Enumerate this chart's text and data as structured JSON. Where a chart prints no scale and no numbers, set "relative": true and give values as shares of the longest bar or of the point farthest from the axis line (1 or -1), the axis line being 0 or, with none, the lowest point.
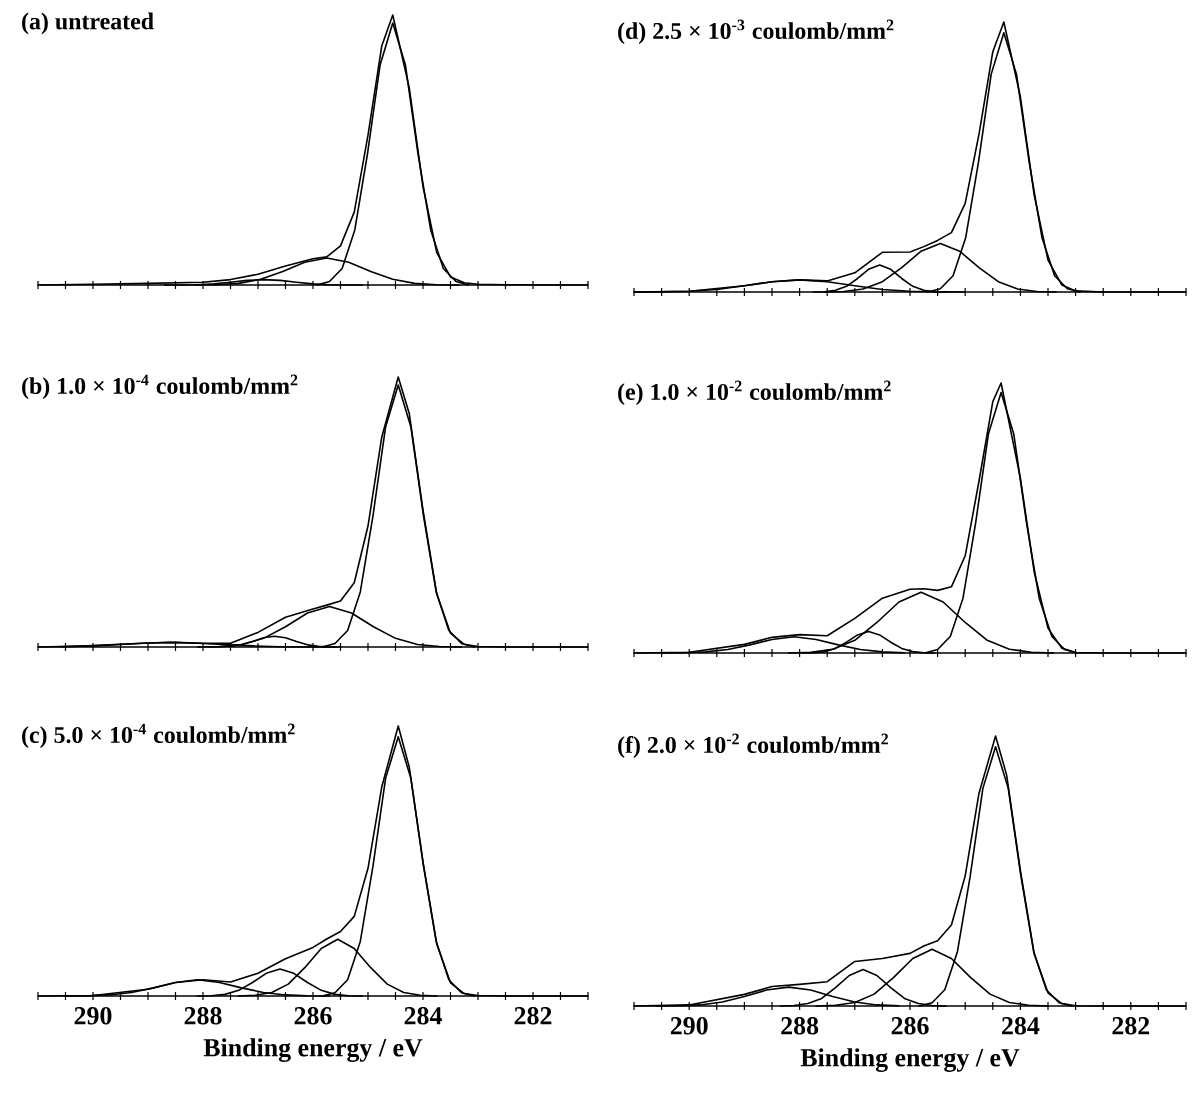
{
  "chart_data": [
    {
      "type": "line",
      "title": "(a) untreated",
      "relative": true,
      "tick_labels": false,
      "xlim": [
        291,
        281
      ],
      "xticks": [
        {
          "value": 291,
          "label": null
        },
        {
          "value": 290.5,
          "label": null
        },
        {
          "value": 290,
          "label": null
        },
        {
          "value": 289.5,
          "label": null
        },
        {
          "value": 289,
          "label": null
        },
        {
          "value": 288.5,
          "label": null
        },
        {
          "value": 288,
          "label": null
        },
        {
          "value": 287.5,
          "label": null
        },
        {
          "value": 287,
          "label": null
        },
        {
          "value": 286.5,
          "label": null
        },
        {
          "value": 286,
          "label": null
        },
        {
          "value": 285.5,
          "label": null
        },
        {
          "value": 285,
          "label": null
        },
        {
          "value": 284.5,
          "label": null
        },
        {
          "value": 284,
          "label": null
        },
        {
          "value": 283.5,
          "label": null
        },
        {
          "value": 283,
          "label": null
        },
        {
          "value": 282.5,
          "label": null
        },
        {
          "value": 282,
          "label": null
        },
        {
          "value": 281.5,
          "label": null
        },
        {
          "value": 281,
          "label": null
        }
      ],
      "series": [
        {
          "color": "#000000",
          "x": [
            291,
            290,
            289,
            288.5,
            288,
            287.5,
            287,
            286.5,
            286,
            285.75,
            285.5,
            285.25,
            285,
            284.75,
            284.55,
            284.25,
            284,
            283.75,
            283.5,
            283.25,
            283,
            282.5,
            281
          ],
          "values": [
            0,
            0.003,
            0.006,
            0.008,
            0.01,
            0.02,
            0.04,
            0.07,
            0.097,
            0.104,
            0.145,
            0.27,
            0.555,
            0.885,
            1.0,
            0.73,
            0.365,
            0.12,
            0.03,
            0.008,
            0.003,
            0.001,
            0
          ]
        },
        {
          "color": "#000000",
          "x": [
            283.17,
            283.4,
            283.63,
            283.86,
            284.09,
            284.32,
            284.55,
            284.78,
            285.01,
            285.24,
            285.47,
            285.7,
            285.93
          ],
          "values": [
            0,
            0.013,
            0.061,
            0.204,
            0.485,
            0.815,
            0.97,
            0.815,
            0.485,
            0.204,
            0.061,
            0.013,
            0
          ]
        },
        {
          "color": "#000000",
          "x": [
            283.35,
            283.75,
            284.15,
            284.55,
            284.95,
            285.35,
            285.75,
            286.15,
            286.55,
            286.95,
            287.35,
            287.75,
            288.15
          ],
          "values": [
            0,
            0.001,
            0.006,
            0.021,
            0.05,
            0.084,
            0.1,
            0.084,
            0.05,
            0.021,
            0.006,
            0.001,
            0
          ]
        },
        {
          "color": "#000000",
          "x": [
            285.1,
            285.4,
            285.7,
            286.0,
            286.3,
            286.6,
            286.9,
            287.2,
            287.5,
            287.8,
            288.1,
            288.4,
            288.7
          ],
          "values": [
            0,
            0,
            0.001,
            0.004,
            0.01,
            0.017,
            0.02,
            0.017,
            0.01,
            0.004,
            0.001,
            0,
            0
          ]
        }
      ]
    },
    {
      "type": "line",
      "title": "(b) 1.0 × 10$^{-4}$ coulomb/mm$^{2}$",
      "relative": true,
      "tick_labels": false,
      "xlim": [
        291,
        281
      ],
      "xticks": [
        {
          "value": 291,
          "label": null
        },
        {
          "value": 290.5,
          "label": null
        },
        {
          "value": 290,
          "label": null
        },
        {
          "value": 289.5,
          "label": null
        },
        {
          "value": 289,
          "label": null
        },
        {
          "value": 288.5,
          "label": null
        },
        {
          "value": 288,
          "label": null
        },
        {
          "value": 287.5,
          "label": null
        },
        {
          "value": 287,
          "label": null
        },
        {
          "value": 286.5,
          "label": null
        },
        {
          "value": 286,
          "label": null
        },
        {
          "value": 285.5,
          "label": null
        },
        {
          "value": 285,
          "label": null
        },
        {
          "value": 284.5,
          "label": null
        },
        {
          "value": 284,
          "label": null
        },
        {
          "value": 283.5,
          "label": null
        },
        {
          "value": 283,
          "label": null
        },
        {
          "value": 282.5,
          "label": null
        },
        {
          "value": 282,
          "label": null
        },
        {
          "value": 281.5,
          "label": null
        },
        {
          "value": 281,
          "label": null
        }
      ],
      "series": [
        {
          "color": "#000000",
          "x": [
            291,
            290,
            289,
            288.5,
            288,
            287.5,
            287,
            286.5,
            286,
            285.75,
            285.5,
            285.25,
            285,
            284.75,
            284.45,
            284.25,
            284,
            283.75,
            283.5,
            283.25,
            283,
            282.5,
            281
          ],
          "values": [
            0,
            0.004,
            0.015,
            0.017,
            0.014,
            0.014,
            0.054,
            0.11,
            0.141,
            0.155,
            0.17,
            0.238,
            0.448,
            0.777,
            1.0,
            0.865,
            0.507,
            0.197,
            0.051,
            0.01,
            0.002,
            0,
            0
          ]
        },
        {
          "color": "#000000",
          "x": [
            283.07,
            283.3,
            283.53,
            283.76,
            283.99,
            284.22,
            284.45,
            284.68,
            284.91,
            285.14,
            285.37,
            285.6,
            285.83
          ],
          "values": [
            0,
            0.013,
            0.061,
            0.204,
            0.485,
            0.815,
            0.97,
            0.815,
            0.485,
            0.204,
            0.061,
            0.013,
            0
          ]
        },
        {
          "color": "#000000",
          "x": [
            283.3,
            283.7,
            284.1,
            284.5,
            284.9,
            285.3,
            285.7,
            286.1,
            286.5,
            286.9,
            287.3,
            287.7,
            288.1
          ],
          "values": [
            0,
            0.002,
            0.009,
            0.032,
            0.075,
            0.126,
            0.15,
            0.126,
            0.075,
            0.032,
            0.009,
            0.002,
            0
          ]
        },
        {
          "color": "#000000",
          "x": [
            285.5,
            285.7,
            285.9,
            286.1,
            286.3,
            286.5,
            286.7,
            286.9,
            287.1,
            287.3,
            287.5,
            287.7,
            287.9
          ],
          "values": [
            0,
            0.001,
            0.003,
            0.008,
            0.02,
            0.034,
            0.04,
            0.034,
            0.02,
            0.008,
            0.003,
            0.001,
            0
          ]
        },
        {
          "color": "#000000",
          "x": [
            285.6,
            286.1,
            286.6,
            287.1,
            287.6,
            288.1,
            288.6,
            289.1,
            289.6,
            290.1,
            290.6
          ],
          "values": [
            0,
            0,
            0.001,
            0.004,
            0.009,
            0.014,
            0.017,
            0.014,
            0.009,
            0.004,
            0.001
          ]
        }
      ]
    },
    {
      "type": "line",
      "title": "(c) 5.0 × 10$^{-4}$ coulomb/mm$^{2}$",
      "xlabel": "Binding energy / eV",
      "relative": true,
      "tick_labels": "x",
      "xlim": [
        291,
        281
      ],
      "xticks": [
        {
          "value": 291,
          "label": null
        },
        {
          "value": 290.5,
          "label": null
        },
        290,
        {
          "value": 289.5,
          "label": null
        },
        {
          "value": 289,
          "label": null
        },
        {
          "value": 288.5,
          "label": null
        },
        288,
        {
          "value": 287.5,
          "label": null
        },
        {
          "value": 287,
          "label": null
        },
        {
          "value": 286.5,
          "label": null
        },
        286,
        {
          "value": 285.5,
          "label": null
        },
        {
          "value": 285,
          "label": null
        },
        {
          "value": 284.5,
          "label": null
        },
        284,
        {
          "value": 283.5,
          "label": null
        },
        {
          "value": 283,
          "label": null
        },
        {
          "value": 282.5,
          "label": null
        },
        282,
        {
          "value": 281.5,
          "label": null
        },
        {
          "value": 281,
          "label": null
        }
      ],
      "series": [
        {
          "color": "#000000",
          "x": [
            291,
            290,
            289,
            288.5,
            288,
            287.5,
            287,
            286.5,
            286,
            285.75,
            285.5,
            285.25,
            285,
            284.75,
            284.45,
            284.25,
            284,
            283.75,
            283.5,
            283.25,
            283,
            282.5,
            281
          ],
          "values": [
            0,
            0.002,
            0.025,
            0.05,
            0.06,
            0.052,
            0.084,
            0.138,
            0.18,
            0.211,
            0.239,
            0.295,
            0.473,
            0.774,
            1.0,
            0.848,
            0.497,
            0.193,
            0.049,
            0.009,
            0.002,
            0,
            0
          ]
        },
        {
          "color": "#000000",
          "x": [
            283.07,
            283.3,
            283.53,
            283.76,
            283.99,
            284.22,
            284.45,
            284.68,
            284.91,
            285.14,
            285.37,
            285.6,
            285.83
          ],
          "values": [
            0,
            0.012,
            0.06,
            0.202,
            0.48,
            0.806,
            0.96,
            0.806,
            0.48,
            0.202,
            0.06,
            0.012,
            0
          ]
        },
        {
          "color": "#000000",
          "x": [
            283.75,
            284.05,
            284.35,
            284.65,
            284.95,
            285.25,
            285.55,
            285.85,
            286.15,
            286.45,
            286.75,
            287.05,
            287.35
          ],
          "values": [
            0,
            0.003,
            0.013,
            0.044,
            0.105,
            0.176,
            0.21,
            0.176,
            0.105,
            0.044,
            0.013,
            0.003,
            0
          ]
        },
        {
          "color": "#000000",
          "x": [
            285.1,
            285.35,
            285.6,
            285.85,
            286.1,
            286.35,
            286.6,
            286.85,
            287.1,
            287.35,
            287.6,
            287.85,
            288.1
          ],
          "values": [
            0,
            0.001,
            0.006,
            0.021,
            0.05,
            0.084,
            0.1,
            0.084,
            0.05,
            0.021,
            0.006,
            0.001,
            0
          ]
        },
        {
          "color": "#000000",
          "x": [
            285.7,
            286.1,
            286.5,
            286.9,
            287.3,
            287.7,
            288.1,
            288.5,
            288.9,
            289.3,
            289.7,
            290.1,
            290.5
          ],
          "values": [
            0,
            0.001,
            0.004,
            0.013,
            0.03,
            0.05,
            0.06,
            0.05,
            0.03,
            0.013,
            0.004,
            0.001,
            0
          ]
        }
      ]
    },
    {
      "type": "line",
      "title": "(d) 2.5 × 10$^{-3}$ coulomb/mm$^{2}$",
      "relative": true,
      "tick_labels": false,
      "xlim": [
        291,
        281
      ],
      "xticks": [
        {
          "value": 291,
          "label": null
        },
        {
          "value": 290.5,
          "label": null
        },
        {
          "value": 290,
          "label": null
        },
        {
          "value": 289.5,
          "label": null
        },
        {
          "value": 289,
          "label": null
        },
        {
          "value": 288.5,
          "label": null
        },
        {
          "value": 288,
          "label": null
        },
        {
          "value": 287.5,
          "label": null
        },
        {
          "value": 287,
          "label": null
        },
        {
          "value": 286.5,
          "label": null
        },
        {
          "value": 286,
          "label": null
        },
        {
          "value": 285.5,
          "label": null
        },
        {
          "value": 285,
          "label": null
        },
        {
          "value": 284.5,
          "label": null
        },
        {
          "value": 284,
          "label": null
        },
        {
          "value": 283.5,
          "label": null
        },
        {
          "value": 283,
          "label": null
        },
        {
          "value": 282.5,
          "label": null
        },
        {
          "value": 282,
          "label": null
        },
        {
          "value": 281.5,
          "label": null
        },
        {
          "value": 281,
          "label": null
        }
      ],
      "series": [
        {
          "color": "#000000",
          "x": [
            291,
            290,
            289,
            288.5,
            288,
            287.5,
            287,
            286.5,
            286,
            285.75,
            285.5,
            285.25,
            285,
            284.75,
            284.5,
            284.3,
            284,
            283.75,
            283.5,
            283.25,
            283,
            282.5,
            281
          ],
          "values": [
            0,
            0.003,
            0.023,
            0.038,
            0.045,
            0.041,
            0.071,
            0.147,
            0.148,
            0.168,
            0.191,
            0.22,
            0.328,
            0.585,
            0.89,
            1.0,
            0.722,
            0.359,
            0.118,
            0.026,
            0.004,
            0,
            0
          ]
        },
        {
          "color": "#000000",
          "x": [
            282.92,
            283.15,
            283.38,
            283.61,
            283.84,
            284.07,
            284.3,
            284.53,
            284.76,
            284.99,
            285.22,
            285.45,
            285.68
          ],
          "values": [
            0,
            0.012,
            0.06,
            0.202,
            0.48,
            0.806,
            0.96,
            0.806,
            0.48,
            0.202,
            0.06,
            0.012,
            0
          ]
        },
        {
          "color": "#000000",
          "x": [
            283.35,
            283.7,
            284.05,
            284.4,
            284.75,
            285.1,
            285.45,
            285.8,
            286.15,
            286.5,
            286.85,
            287.2,
            287.55
          ],
          "values": [
            0,
            0.002,
            0.011,
            0.038,
            0.09,
            0.151,
            0.18,
            0.151,
            0.09,
            0.038,
            0.011,
            0.002,
            0
          ]
        },
        {
          "color": "#000000",
          "x": [
            285.35,
            285.55,
            285.75,
            285.95,
            286.15,
            286.35,
            286.55,
            286.75,
            286.95,
            287.15,
            287.35,
            287.55,
            287.75
          ],
          "values": [
            0,
            0.001,
            0.006,
            0.021,
            0.05,
            0.084,
            0.1,
            0.084,
            0.05,
            0.021,
            0.006,
            0.001,
            0
          ]
        },
        {
          "color": "#000000",
          "x": [
            285,
            285.5,
            286,
            286.5,
            287,
            287.5,
            288,
            288.5,
            289,
            289.5,
            290,
            290.5,
            291
          ],
          "values": [
            0,
            0.001,
            0.003,
            0.009,
            0.023,
            0.038,
            0.045,
            0.038,
            0.023,
            0.009,
            0.003,
            0.001,
            0
          ]
        }
      ]
    },
    {
      "type": "line",
      "title": "(e) 1.0 × 10$^{-2}$ coulomb/mm$^{2}$",
      "relative": true,
      "tick_labels": false,
      "xlim": [
        291,
        281
      ],
      "xticks": [
        {
          "value": 291,
          "label": null
        },
        {
          "value": 290.5,
          "label": null
        },
        {
          "value": 290,
          "label": null
        },
        {
          "value": 289.5,
          "label": null
        },
        {
          "value": 289,
          "label": null
        },
        {
          "value": 288.5,
          "label": null
        },
        {
          "value": 288,
          "label": null
        },
        {
          "value": 287.5,
          "label": null
        },
        {
          "value": 287,
          "label": null
        },
        {
          "value": 286.5,
          "label": null
        },
        {
          "value": 286,
          "label": null
        },
        {
          "value": 285.5,
          "label": null
        },
        {
          "value": 285,
          "label": null
        },
        {
          "value": 284.5,
          "label": null
        },
        {
          "value": 284,
          "label": null
        },
        {
          "value": 283.5,
          "label": null
        },
        {
          "value": 283,
          "label": null
        },
        {
          "value": 282.5,
          "label": null
        },
        {
          "value": 282,
          "label": null
        },
        {
          "value": 281.5,
          "label": null
        },
        {
          "value": 281,
          "label": null
        }
      ],
      "series": [
        {
          "color": "#000000",
          "x": [
            291,
            290,
            289,
            288.5,
            288,
            287.5,
            287,
            286.5,
            286,
            285.75,
            285.5,
            285.25,
            285,
            284.75,
            284.5,
            284.35,
            284,
            283.75,
            283.5,
            283.25,
            283,
            282.5,
            281
          ],
          "values": [
            0,
            0.003,
            0.032,
            0.058,
            0.068,
            0.064,
            0.128,
            0.203,
            0.236,
            0.238,
            0.232,
            0.245,
            0.36,
            0.637,
            0.931,
            1.0,
            0.647,
            0.3,
            0.092,
            0.018,
            0.002,
            0,
            0
          ]
        },
        {
          "color": "#000000",
          "x": [
            282.97,
            283.2,
            283.43,
            283.66,
            283.89,
            284.12,
            284.35,
            284.58,
            284.81,
            285.04,
            285.27,
            285.5,
            285.73
          ],
          "values": [
            0,
            0.013,
            0.061,
            0.203,
            0.483,
            0.811,
            0.965,
            0.811,
            0.483,
            0.203,
            0.061,
            0.013,
            0
          ]
        },
        {
          "color": "#000000",
          "x": [
            283.4,
            283.8,
            284.2,
            284.6,
            285,
            285.4,
            285.8,
            286.2,
            286.6,
            287,
            287.4,
            287.8,
            288.2
          ],
          "values": [
            0,
            0.003,
            0.014,
            0.047,
            0.113,
            0.189,
            0.225,
            0.189,
            0.113,
            0.047,
            0.014,
            0.003,
            0
          ]
        },
        {
          "color": "#000000",
          "x": [
            285.55,
            285.75,
            285.95,
            286.15,
            286.35,
            286.55,
            286.75,
            286.95,
            287.15,
            287.35,
            287.55,
            287.75,
            287.95
          ],
          "values": [
            0,
            0.001,
            0.005,
            0.017,
            0.04,
            0.067,
            0.08,
            0.067,
            0.04,
            0.017,
            0.005,
            0.001,
            0
          ]
        },
        {
          "color": "#000000",
          "x": [
            286.1,
            286.5,
            286.9,
            287.3,
            287.7,
            288.1,
            288.5,
            288.9,
            289.3,
            289.7,
            290.1,
            290.5
          ],
          "values": [
            0.001,
            0.004,
            0.013,
            0.03,
            0.05,
            0.06,
            0.05,
            0.03,
            0.013,
            0.004,
            0.001,
            0
          ]
        }
      ]
    },
    {
      "type": "line",
      "title": "(f) 2.0 × 10$^{-2}$ coulomb/mm$^{2}$",
      "xlabel": "Binding energy / eV",
      "relative": true,
      "tick_labels": "x",
      "xlim": [
        291,
        281
      ],
      "xticks": [
        {
          "value": 291,
          "label": null
        },
        {
          "value": 290.5,
          "label": null
        },
        290,
        {
          "value": 289.5,
          "label": null
        },
        {
          "value": 289,
          "label": null
        },
        {
          "value": 288.5,
          "label": null
        },
        288,
        {
          "value": 287.5,
          "label": null
        },
        {
          "value": 287,
          "label": null
        },
        {
          "value": 286.5,
          "label": null
        },
        286,
        {
          "value": 285.5,
          "label": null
        },
        {
          "value": 285,
          "label": null
        },
        {
          "value": 284.5,
          "label": null
        },
        284,
        {
          "value": 283.5,
          "label": null
        },
        {
          "value": 283,
          "label": null
        },
        {
          "value": 282.5,
          "label": null
        },
        282,
        {
          "value": 281.5,
          "label": null
        },
        {
          "value": 281,
          "label": null
        }
      ],
      "series": [
        {
          "color": "#000000",
          "x": [
            291,
            290,
            289,
            288.5,
            288,
            287.5,
            287,
            286.5,
            286,
            285.75,
            285.5,
            285.25,
            285,
            284.75,
            284.45,
            284.25,
            284,
            283.75,
            283.5,
            283.25,
            283,
            282.5,
            281
          ],
          "values": [
            0,
            0.004,
            0.043,
            0.072,
            0.08,
            0.09,
            0.165,
            0.176,
            0.195,
            0.222,
            0.242,
            0.3,
            0.482,
            0.788,
            1.0,
            0.856,
            0.501,
            0.193,
            0.049,
            0.009,
            0.001,
            0,
            0
          ]
        },
        {
          "color": "#000000",
          "x": [
            283.07,
            283.3,
            283.53,
            283.76,
            283.99,
            284.22,
            284.45,
            284.68,
            284.91,
            285.14,
            285.37,
            285.6,
            285.83
          ],
          "values": [
            0,
            0.012,
            0.06,
            0.202,
            0.48,
            0.806,
            0.96,
            0.806,
            0.48,
            0.202,
            0.06,
            0.012,
            0
          ]
        },
        {
          "color": "#000000",
          "x": [
            283.5,
            283.85,
            284.2,
            284.55,
            284.9,
            285.25,
            285.6,
            285.95,
            286.3,
            286.65,
            287,
            287.35,
            287.7
          ],
          "values": [
            0,
            0.003,
            0.013,
            0.044,
            0.105,
            0.176,
            0.21,
            0.176,
            0.105,
            0.044,
            0.013,
            0.003,
            0
          ]
        },
        {
          "color": "#000000",
          "x": [
            285.35,
            285.6,
            285.85,
            286.1,
            286.35,
            286.6,
            286.85,
            287.1,
            287.35,
            287.6,
            287.85,
            288.1,
            288.35
          ],
          "values": [
            0,
            0.002,
            0.009,
            0.028,
            0.068,
            0.113,
            0.135,
            0.113,
            0.068,
            0.028,
            0.009,
            0.002,
            0
          ]
        },
        {
          "color": "#000000",
          "x": [
            286.2,
            286.6,
            287,
            287.4,
            287.8,
            288.2,
            288.6,
            289,
            289.4,
            289.8,
            290.2,
            290.6
          ],
          "values": [
            0.001,
            0.004,
            0.015,
            0.035,
            0.059,
            0.07,
            0.059,
            0.035,
            0.015,
            0.004,
            0.001,
            0
          ]
        }
      ]
    }
  ]
}
